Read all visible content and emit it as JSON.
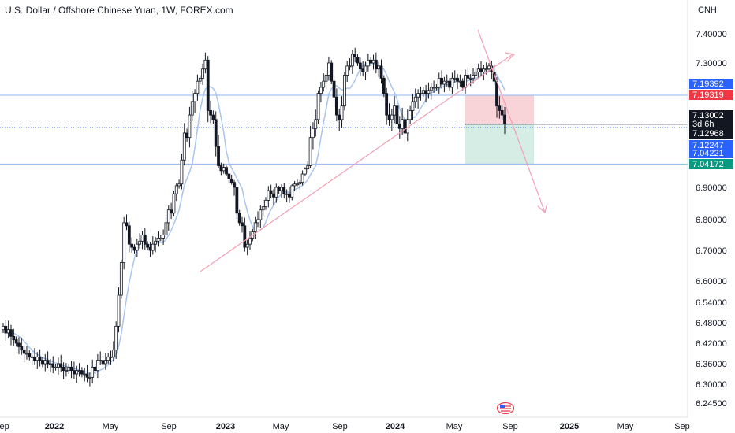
{
  "title": "U.S. Dollar / Offshore Chinese Yuan, 1W, FOREX.com",
  "currency": "CNH",
  "colors": {
    "up": "#ffffff",
    "down": "#131722",
    "ma": "#a9c6ee",
    "hline": "#8fb4ef",
    "trend": "#f2a0b5",
    "stop": "#f8d3d8",
    "target": "#d5ede5"
  },
  "chart_data": {
    "type": "candlestick",
    "x_ticks": [
      "Sep",
      "2022",
      "May",
      "Sep",
      "2023",
      "May",
      "Sep",
      "2024",
      "May",
      "Sep",
      "2025",
      "May",
      "Sep"
    ],
    "y_ticks": [
      "7.40000",
      "7.30000",
      "6.90000",
      "6.80000",
      "6.70000",
      "6.60000",
      "6.54000",
      "6.48000",
      "6.42000",
      "6.36000",
      "6.30000",
      "6.24500"
    ],
    "price_badges": [
      {
        "text": "7.19392",
        "color": "#2962ff",
        "value": 7.19392
      },
      {
        "text": "7.19319",
        "color": "#f23645",
        "value": 7.19319
      },
      {
        "text": "7.13002",
        "color": "#131722",
        "value": 7.13002
      },
      {
        "text": "3d 6h",
        "color": "#131722",
        "value": null
      },
      {
        "text": "7.12968",
        "color": "#131722",
        "value": 7.12968
      },
      {
        "text": "7.12247",
        "color": "#2962ff",
        "value": 7.12247
      },
      {
        "text": "7.04221",
        "color": "#2962ff",
        "value": 7.04221
      },
      {
        "text": "7.04172",
        "color": "#089981",
        "value": 7.04172
      }
    ],
    "horizontal_lines": [
      7.194,
      7.04
    ],
    "position_box": {
      "entry": 7.1297,
      "stop": 7.1932,
      "target": 7.0417
    },
    "close_series": [
      6.47,
      6.45,
      6.46,
      6.44,
      6.43,
      6.42,
      6.41,
      6.4,
      6.39,
      6.39,
      6.38,
      6.38,
      6.37,
      6.38,
      6.37,
      6.36,
      6.37,
      6.36,
      6.36,
      6.35,
      6.35,
      6.36,
      6.35,
      6.34,
      6.34,
      6.35,
      6.34,
      6.33,
      6.34,
      6.34,
      6.33,
      6.33,
      6.32,
      6.32,
      6.35,
      6.34,
      6.37,
      6.37,
      6.36,
      6.37,
      6.38,
      6.38,
      6.4,
      6.47,
      6.56,
      6.66,
      6.79,
      6.78,
      6.72,
      6.71,
      6.7,
      6.72,
      6.73,
      6.75,
      6.72,
      6.71,
      6.7,
      6.72,
      6.73,
      6.74,
      6.74,
      6.75,
      6.79,
      6.83,
      6.82,
      6.88,
      6.91,
      6.92,
      7.05,
      7.11,
      7.1,
      7.15,
      7.18,
      7.2,
      7.24,
      7.25,
      7.28,
      7.31,
      7.16,
      7.15,
      7.14,
      7.08,
      7.03,
      7.0,
      7.02,
      6.98,
      6.95,
      6.93,
      6.9,
      6.82,
      6.79,
      6.78,
      6.71,
      6.72,
      6.74,
      6.76,
      6.79,
      6.8,
      6.83,
      6.84,
      6.86,
      6.89,
      6.88,
      6.87,
      6.9,
      6.89,
      6.9,
      6.88,
      6.88,
      6.87,
      6.91,
      6.92,
      6.92,
      6.93,
      6.98,
      7.01,
      7.03,
      7.1,
      7.12,
      7.14,
      7.2,
      7.22,
      7.24,
      7.26,
      7.3,
      7.24,
      7.19,
      7.15,
      7.14,
      7.17,
      7.26,
      7.29,
      7.29,
      7.33,
      7.32,
      7.3,
      7.28,
      7.27,
      7.29,
      7.31,
      7.3,
      7.31,
      7.28,
      7.29,
      7.25,
      7.2,
      7.15,
      7.14,
      7.15,
      7.17,
      7.13,
      7.12,
      7.14,
      7.11,
      7.14,
      7.16,
      7.18,
      7.19,
      7.2,
      7.2,
      7.21,
      7.2,
      7.21,
      7.22,
      7.22,
      7.22,
      7.25,
      7.23,
      7.24,
      7.24,
      7.22,
      7.25,
      7.25,
      7.24,
      7.24,
      7.22,
      7.26,
      7.25,
      7.25,
      7.26,
      7.27,
      7.28,
      7.27,
      7.28,
      7.28,
      7.29,
      7.27,
      7.24,
      7.17,
      7.16,
      7.15,
      7.13
    ]
  }
}
